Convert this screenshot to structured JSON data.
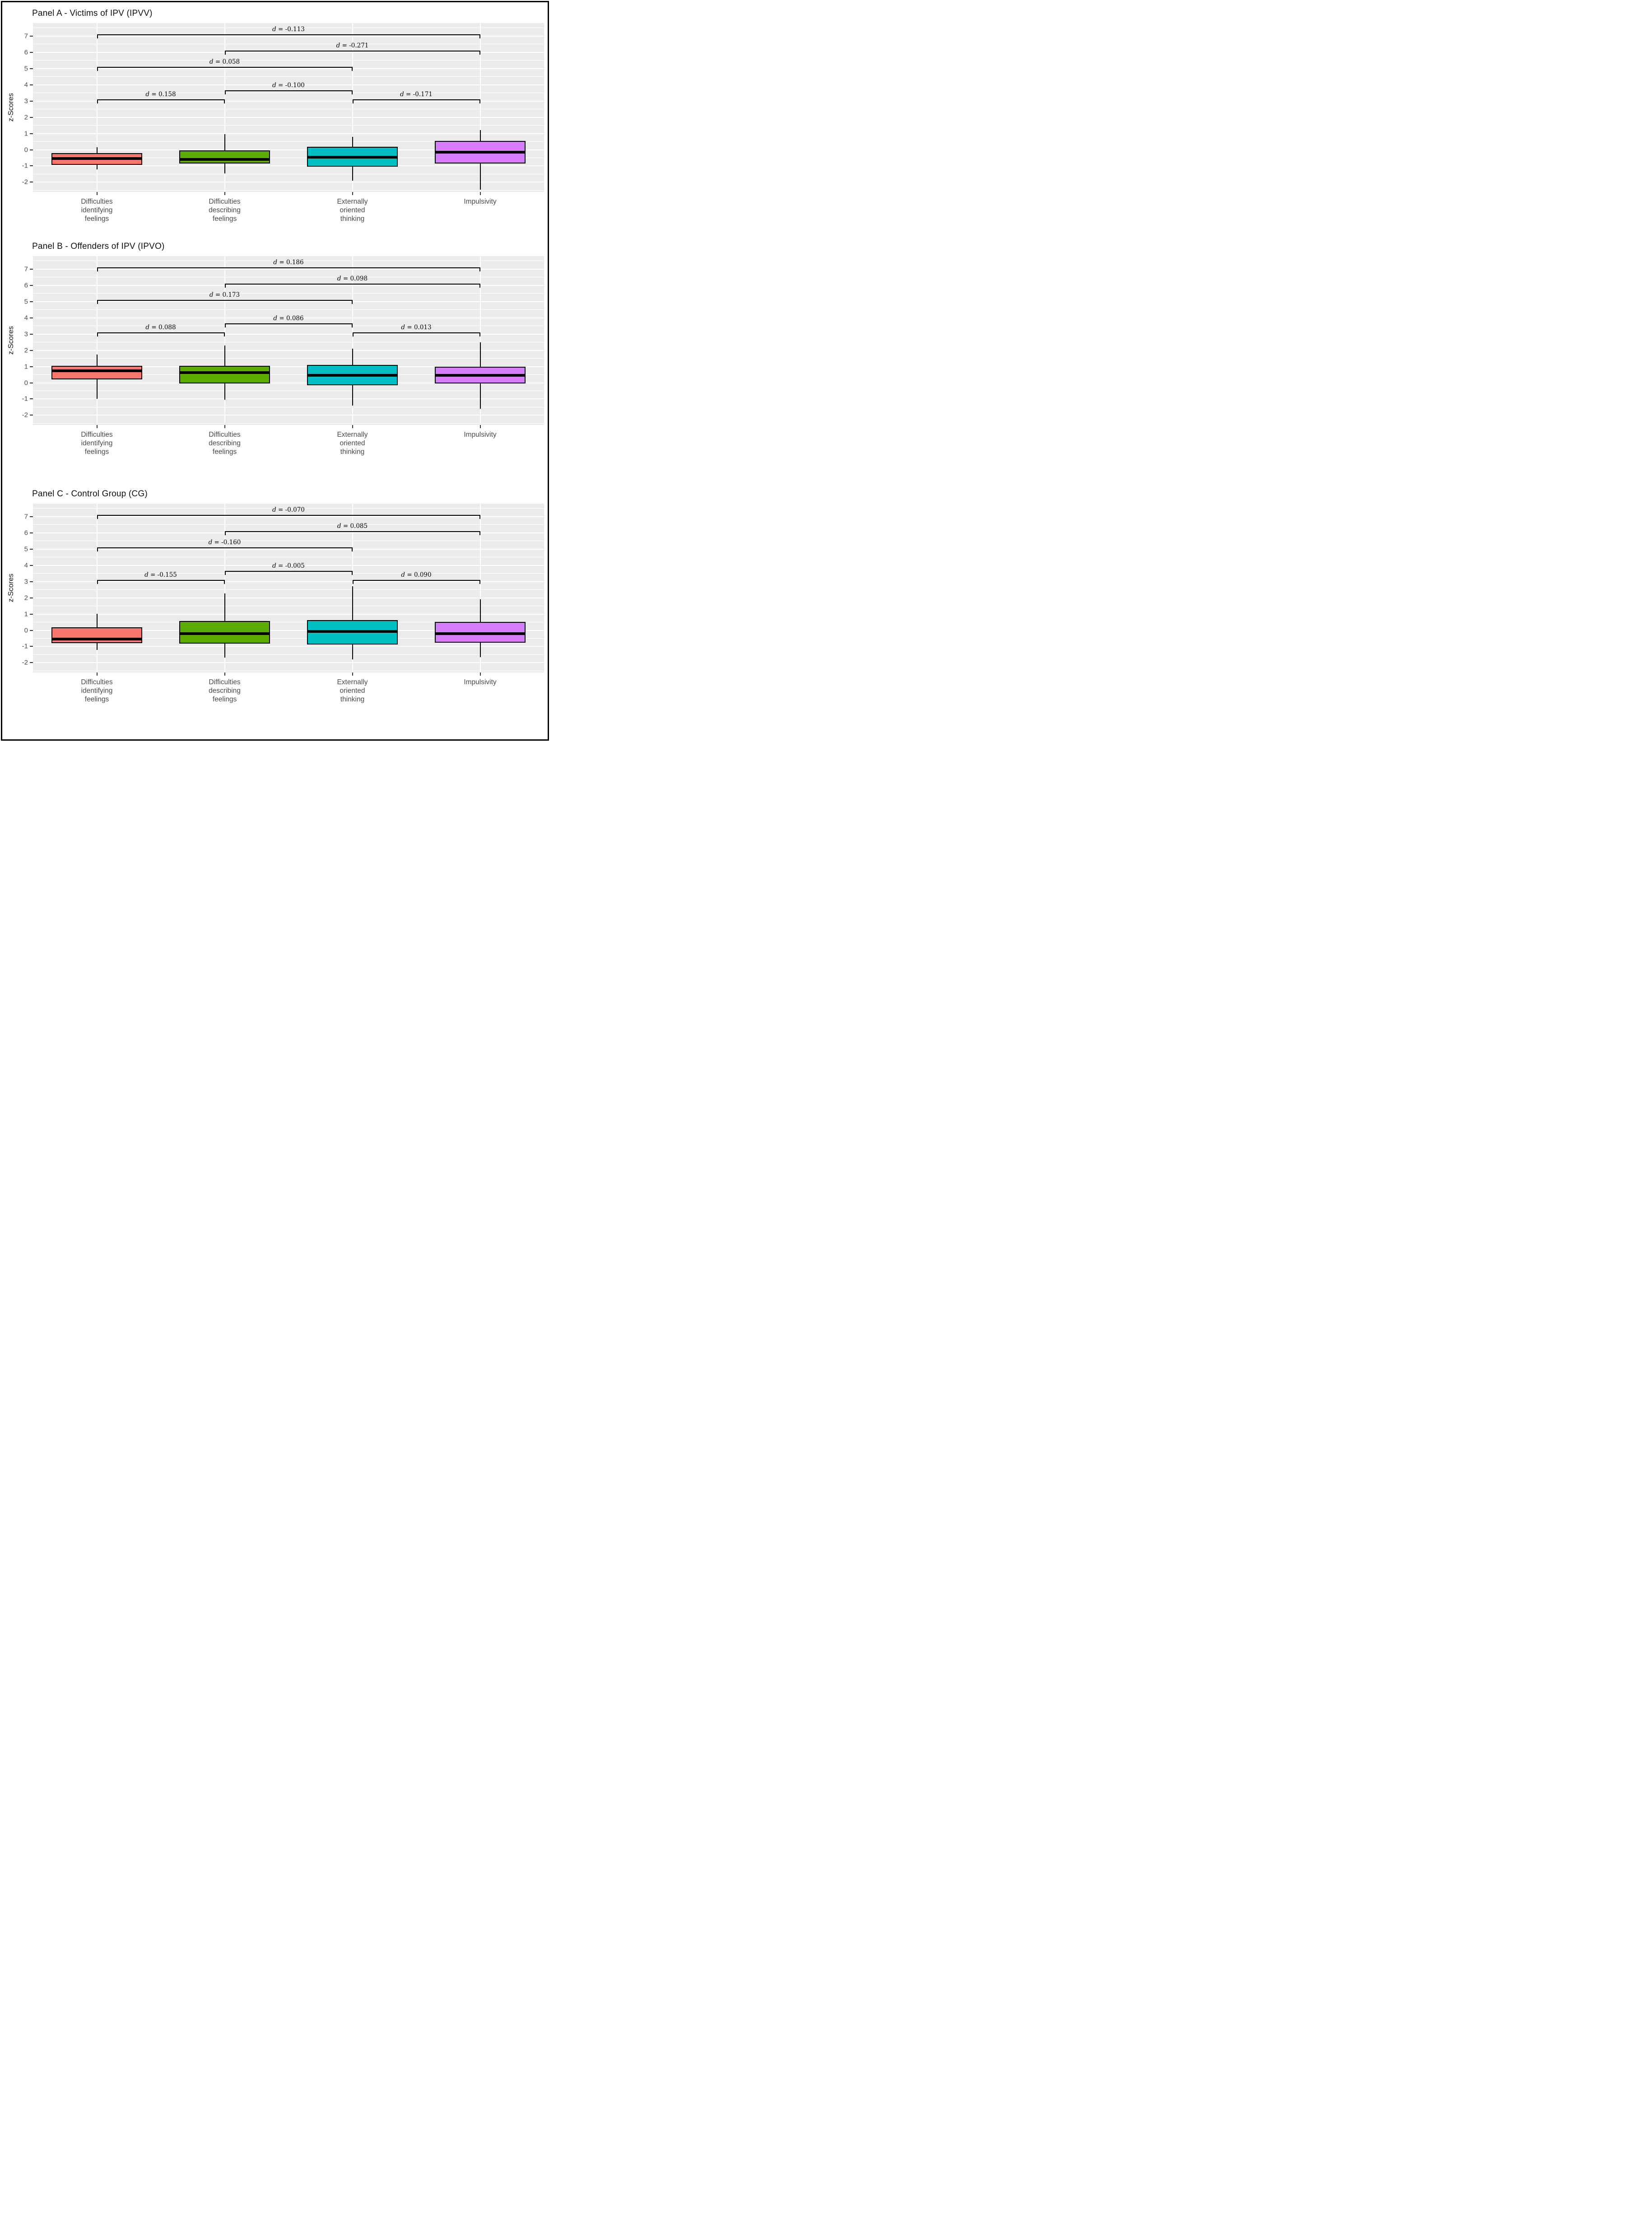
{
  "chart_data": {
    "type": "boxplot",
    "y_axis": {
      "label": "z-Scores",
      "ticks": [
        7,
        6,
        5,
        4,
        3,
        2,
        1,
        0,
        -1,
        -2
      ],
      "range": [
        -2.6,
        7.8
      ],
      "grid": "major-and-minor-white-on-grey"
    },
    "categories": [
      {
        "lines": [
          "Difficulties",
          "identifying",
          "feelings"
        ]
      },
      {
        "lines": [
          "Difficulties",
          "describing",
          "feelings"
        ]
      },
      {
        "lines": [
          "Externally",
          "oriented",
          "thinking"
        ]
      },
      {
        "lines": [
          "Impulsivity"
        ]
      }
    ],
    "category_centers_pct": [
      12.5,
      37.5,
      62.5,
      87.5
    ],
    "box_width_pct": 17.8,
    "palette": [
      {
        "name": "salmon",
        "hex": "#F8766D"
      },
      {
        "name": "green",
        "hex": "#5CAD00"
      },
      {
        "name": "cyan",
        "hex": "#00BFC4"
      },
      {
        "name": "purple",
        "hex": "#D77CFA"
      }
    ],
    "panel_background": "#EBEBEB",
    "comparison_symbol": "d",
    "panels": [
      {
        "id": "panel-a",
        "title": "Panel A - Victims of IPV (IPVV)",
        "boxes": [
          {
            "whisker_low": -1.2,
            "q1": -0.93,
            "median": -0.55,
            "q3": -0.22,
            "whisker_high": 0.16
          },
          {
            "whisker_low": -1.45,
            "q1": -0.85,
            "median": -0.63,
            "q3": -0.03,
            "whisker_high": 0.97
          },
          {
            "whisker_low": -1.9,
            "q1": -1.05,
            "median": -0.45,
            "q3": 0.18,
            "whisker_high": 0.8
          },
          {
            "whisker_low": -2.45,
            "q1": -0.85,
            "median": -0.15,
            "q3": 0.53,
            "whisker_high": 1.22
          }
        ],
        "comparisons": [
          {
            "a": 0,
            "b": 3,
            "y": 7.1,
            "d": "-0.113"
          },
          {
            "a": 1,
            "b": 3,
            "y": 6.1,
            "d": "-0.271"
          },
          {
            "a": 0,
            "b": 2,
            "y": 5.1,
            "d": "0.058"
          },
          {
            "a": 1,
            "b": 2,
            "y": 3.65,
            "d": "-0.100"
          },
          {
            "a": 0,
            "b": 1,
            "y": 3.1,
            "d": "0.158"
          },
          {
            "a": 2,
            "b": 3,
            "y": 3.1,
            "d": "-0.171"
          }
        ]
      },
      {
        "id": "panel-b",
        "title": "Panel B - Offenders of IPV (IPVO)",
        "boxes": [
          {
            "whisker_low": -1.0,
            "q1": 0.2,
            "median": 0.75,
            "q3": 1.05,
            "whisker_high": 1.75
          },
          {
            "whisker_low": -1.05,
            "q1": -0.05,
            "median": 0.65,
            "q3": 1.05,
            "whisker_high": 2.3
          },
          {
            "whisker_low": -1.4,
            "q1": -0.15,
            "median": 0.45,
            "q3": 1.1,
            "whisker_high": 2.1
          },
          {
            "whisker_low": -1.6,
            "q1": -0.05,
            "median": 0.45,
            "q3": 1.0,
            "whisker_high": 2.5
          }
        ],
        "comparisons": [
          {
            "a": 0,
            "b": 3,
            "y": 7.1,
            "d": "0.186"
          },
          {
            "a": 1,
            "b": 3,
            "y": 6.1,
            "d": "0.098"
          },
          {
            "a": 0,
            "b": 2,
            "y": 5.1,
            "d": "0.173"
          },
          {
            "a": 1,
            "b": 2,
            "y": 3.65,
            "d": "0.086"
          },
          {
            "a": 0,
            "b": 1,
            "y": 3.1,
            "d": "0.088"
          },
          {
            "a": 2,
            "b": 3,
            "y": 3.1,
            "d": "0.013"
          }
        ]
      },
      {
        "id": "panel-c",
        "title": "Panel C - Control Group (CG)",
        "boxes": [
          {
            "whisker_low": -1.2,
            "q1": -0.78,
            "median": -0.58,
            "q3": 0.17,
            "whisker_high": 1.02
          },
          {
            "whisker_low": -1.67,
            "q1": -0.81,
            "median": -0.21,
            "q3": 0.56,
            "whisker_high": 2.27
          },
          {
            "whisker_low": -1.8,
            "q1": -0.87,
            "median": -0.07,
            "q3": 0.62,
            "whisker_high": 2.72
          },
          {
            "whisker_low": -1.65,
            "q1": -0.77,
            "median": -0.23,
            "q3": 0.52,
            "whisker_high": 1.9
          }
        ],
        "comparisons": [
          {
            "a": 0,
            "b": 3,
            "y": 7.1,
            "d": "-0.070"
          },
          {
            "a": 1,
            "b": 3,
            "y": 6.1,
            "d": "0.085"
          },
          {
            "a": 0,
            "b": 2,
            "y": 5.1,
            "d": "-0.160"
          },
          {
            "a": 1,
            "b": 2,
            "y": 3.65,
            "d": "-0.005"
          },
          {
            "a": 0,
            "b": 1,
            "y": 3.1,
            "d": "-0.155"
          },
          {
            "a": 2,
            "b": 3,
            "y": 3.1,
            "d": "0.090"
          }
        ]
      }
    ]
  }
}
